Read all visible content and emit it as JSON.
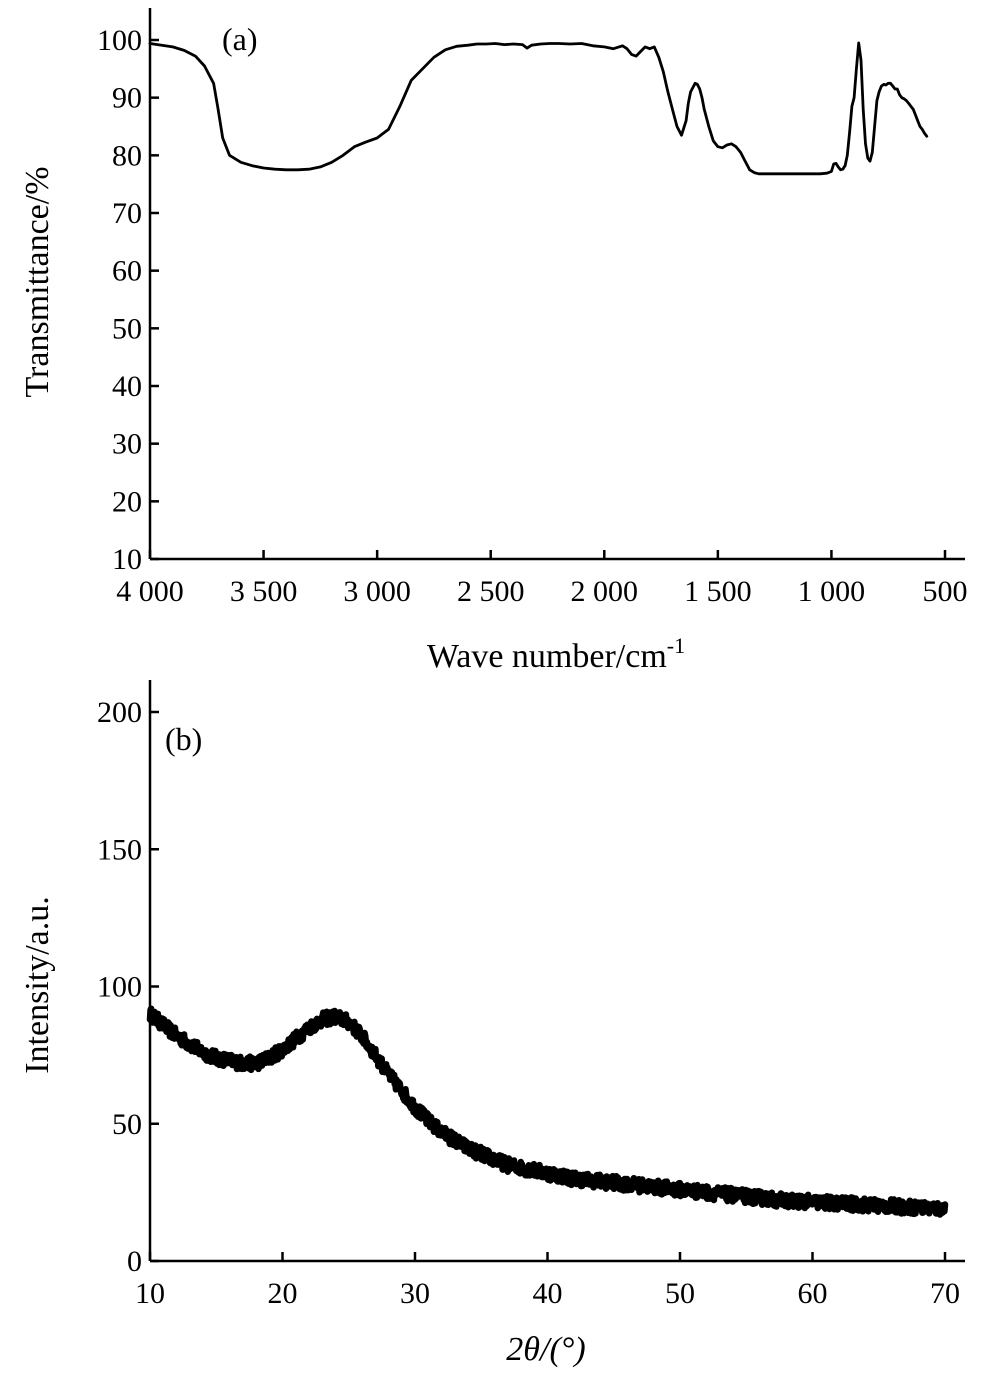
{
  "chart_data": [
    {
      "type": "line",
      "panel_label": "(a)",
      "xlabel": "Wave number/cm",
      "xlabel_superscript": "-1",
      "ylabel": "Transmittance/%",
      "xlim": [
        4000,
        500
      ],
      "x_reversed": true,
      "ylim": [
        10,
        100
      ],
      "x_ticks": [
        4000,
        3500,
        3000,
        2500,
        2000,
        1500,
        1000,
        500
      ],
      "x_tick_labels": [
        "4 000",
        "3 500",
        "3 000",
        "2 500",
        "2 000",
        "1 500",
        "1 000",
        "500"
      ],
      "y_ticks": [
        10,
        20,
        30,
        40,
        50,
        60,
        70,
        80,
        90,
        100
      ],
      "y_tick_labels": [
        "10",
        "20",
        "30",
        "40",
        "50",
        "60",
        "70",
        "80",
        "90",
        "100"
      ],
      "grid": false,
      "series": [
        {
          "x": [
            4000,
            3900,
            3850,
            3800,
            3760,
            3720,
            3700,
            3680,
            3650,
            3600,
            3550,
            3500,
            3450,
            3400,
            3350,
            3300,
            3250,
            3200,
            3150,
            3100,
            3050,
            3000,
            2950,
            2900,
            2850,
            2800,
            2750,
            2700,
            2650,
            2600,
            2560,
            2520,
            2480,
            2440,
            2400,
            2360,
            2340,
            2320,
            2280,
            2240,
            2200,
            2150,
            2100,
            2050,
            2000,
            1960,
            1920,
            1900,
            1880,
            1860,
            1840,
            1820,
            1800,
            1780,
            1760,
            1740,
            1720,
            1700,
            1680,
            1660,
            1640,
            1630,
            1620,
            1600,
            1590,
            1580,
            1570,
            1560,
            1540,
            1520,
            1500,
            1480,
            1460,
            1440,
            1420,
            1400,
            1380,
            1360,
            1340,
            1320,
            1300,
            1280,
            1260,
            1240,
            1220,
            1200,
            1150,
            1100,
            1050,
            1020,
            1000,
            990,
            980,
            970,
            960,
            950,
            940,
            930,
            920,
            910,
            900,
            890,
            880,
            870,
            860,
            850,
            840,
            830,
            820,
            810,
            800,
            790,
            780,
            770,
            760,
            750,
            740,
            730,
            720,
            710,
            700,
            690,
            680,
            670,
            660,
            650,
            640,
            630,
            620,
            610,
            600,
            590,
            580
          ],
          "y": [
            99.4,
            98.8,
            98.2,
            97.2,
            95.5,
            92.5,
            88.0,
            83.0,
            80.0,
            78.8,
            78.2,
            77.8,
            77.6,
            77.5,
            77.5,
            77.6,
            78.0,
            78.8,
            80.0,
            81.5,
            82.3,
            83.0,
            84.5,
            88.5,
            93.0,
            95.0,
            97.0,
            98.3,
            98.9,
            99.1,
            99.3,
            99.3,
            99.4,
            99.2,
            99.3,
            99.2,
            98.6,
            99.1,
            99.3,
            99.4,
            99.4,
            99.3,
            99.4,
            99.0,
            98.8,
            98.5,
            99.0,
            98.5,
            97.5,
            97.2,
            98.0,
            98.8,
            98.5,
            98.8,
            97.0,
            94.5,
            91.0,
            88.0,
            85.0,
            83.5,
            86.0,
            89.0,
            91.0,
            92.5,
            92.3,
            91.5,
            90.0,
            88.0,
            85.0,
            82.5,
            81.5,
            81.3,
            81.8,
            82.0,
            81.5,
            80.5,
            79.0,
            77.5,
            77.0,
            76.8,
            76.8,
            76.8,
            76.8,
            76.8,
            76.8,
            76.8,
            76.8,
            76.8,
            76.8,
            76.9,
            77.2,
            78.5,
            78.6,
            78.0,
            77.5,
            77.6,
            78.2,
            80.0,
            84.0,
            88.5,
            90.0,
            95.0,
            99.5,
            96.5,
            88.0,
            82.0,
            79.5,
            79.0,
            80.5,
            85.0,
            89.5,
            91.0,
            92.0,
            92.3,
            92.2,
            92.5,
            92.5,
            92.0,
            91.5,
            91.5,
            90.5,
            90.0,
            89.8,
            89.5,
            89.0,
            88.5,
            88.0,
            87.0,
            86.0,
            85.0,
            84.5,
            83.8,
            83.3
          ]
        }
      ]
    },
    {
      "type": "line",
      "panel_label": "(b)",
      "xlabel": "2θ/(°)",
      "ylabel": "Intensity/a.u.",
      "xlim": [
        10,
        70
      ],
      "ylim": [
        0,
        200
      ],
      "x_ticks": [
        10,
        20,
        30,
        40,
        50,
        60,
        70
      ],
      "x_tick_labels": [
        "10",
        "20",
        "30",
        "40",
        "50",
        "60",
        "70"
      ],
      "y_ticks": [
        0,
        50,
        100,
        150,
        200
      ],
      "y_tick_labels": [
        "0",
        "50",
        "100",
        "150",
        "200"
      ],
      "grid": false,
      "series": [
        {
          "x": [
            10,
            11,
            12,
            13,
            14,
            15,
            16,
            17,
            18,
            19,
            20,
            21,
            22,
            23,
            24,
            25,
            26,
            27,
            28,
            29,
            30,
            31,
            32,
            33,
            34,
            35,
            36,
            37,
            38,
            39,
            40,
            41,
            42,
            43,
            44,
            45,
            46,
            47,
            48,
            49,
            50,
            51,
            52,
            53,
            54,
            55,
            56,
            57,
            58,
            59,
            60,
            61,
            62,
            63,
            64,
            65,
            66,
            67,
            68,
            69,
            70
          ],
          "y": [
            90,
            86,
            82,
            79,
            76,
            74,
            73,
            72,
            72,
            74,
            77,
            81,
            85,
            88,
            89,
            87,
            82,
            75,
            68,
            62,
            56,
            51,
            47,
            44,
            41,
            39,
            37,
            35,
            34,
            33,
            32,
            31,
            30,
            29.5,
            29,
            28.5,
            28,
            27.5,
            27,
            26.5,
            26,
            25.5,
            25,
            24.5,
            24,
            23.5,
            23,
            22.5,
            22,
            21.8,
            21.5,
            21.2,
            21,
            20.7,
            20.5,
            20.2,
            20,
            19.7,
            19.5,
            19.2,
            19
          ]
        }
      ]
    }
  ]
}
